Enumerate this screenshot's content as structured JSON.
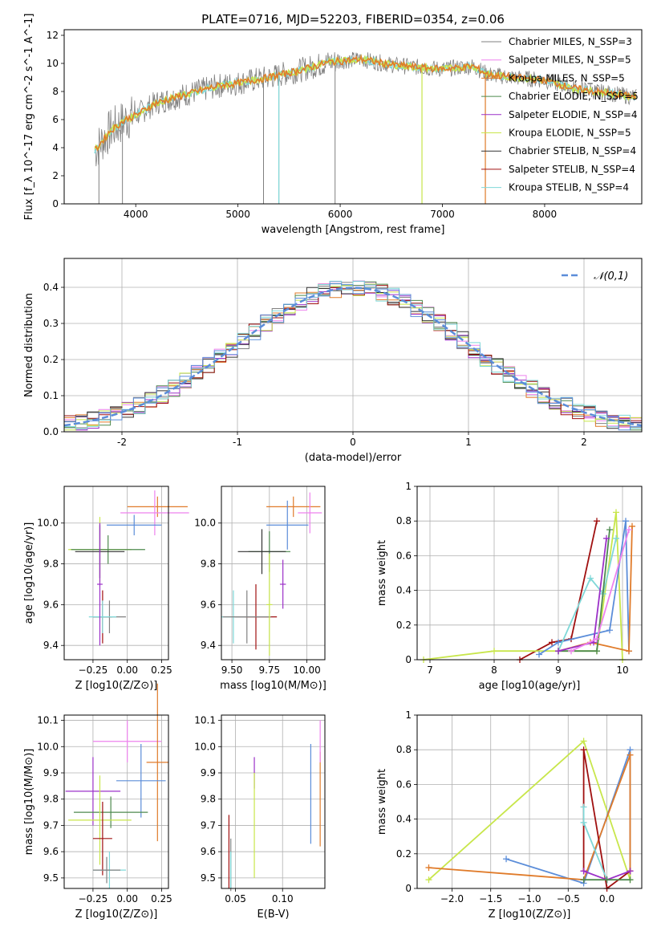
{
  "figure_title": "PLATE=0716, MJD=52203, FIBERID=0354, z=0.06",
  "colors": {
    "chabrier_miles": "#808080",
    "salpeter_miles": "#ee82ee",
    "kroupa_miles": "#e07b2a",
    "chabrier_elodie": "#4e8a4e",
    "salpeter_elodie": "#9b30c8",
    "kroupa_elodie": "#c8e64b",
    "chabrier_stelib": "#333333",
    "salpeter_stelib": "#a01010",
    "kroupa_stelib": "#7fd8d8",
    "normal_curve": "#5b8dd9"
  },
  "chart_data": [
    {
      "type": "line",
      "title": "PLATE=0716, MJD=52203, FIBERID=0354, z=0.06",
      "xlabel": "wavelength [Angstrom, rest frame]",
      "ylabel": "Flux [f_λ 10^-17 erg cm^-2 s^-1 A^-1]",
      "xlim": [
        3300,
        8950
      ],
      "ylim": [
        0,
        12.4
      ],
      "xticks": [
        4000,
        5000,
        6000,
        7000,
        8000
      ],
      "yticks": [
        0,
        2,
        4,
        6,
        8,
        10,
        12
      ],
      "grid": false,
      "legend_position": "right",
      "continuum": {
        "x": [
          3600,
          3750,
          3900,
          4000,
          4200,
          4500,
          4800,
          5000,
          5300,
          5600,
          5900,
          6200,
          6500,
          6800,
          7000,
          7300,
          7450,
          7700,
          8000,
          8300,
          8500,
          8700,
          8900
        ],
        "y": [
          3.8,
          5.2,
          6.0,
          6.3,
          7.2,
          7.8,
          8.4,
          8.6,
          9.0,
          9.5,
          10.1,
          10.3,
          9.9,
          9.7,
          9.6,
          9.8,
          9.2,
          9.0,
          8.8,
          8.2,
          8.0,
          7.8,
          7.6
        ]
      },
      "spikes": [
        {
          "x": 3640,
          "y": 0
        },
        {
          "x": 3870,
          "y": 0
        },
        {
          "x": 5250,
          "y": 0
        },
        {
          "x": 5400,
          "y": 0
        },
        {
          "x": 5950,
          "y": 0
        },
        {
          "x": 6800,
          "y": 0
        },
        {
          "x": 7420,
          "y": 0
        }
      ],
      "series": [
        {
          "name": "Chabrier MILES, N_SSP=3",
          "color_key": "chabrier_miles"
        },
        {
          "name": "Salpeter MILES, N_SSP=5",
          "color_key": "salpeter_miles"
        },
        {
          "name": "Kroupa MILES, N_SSP=5",
          "color_key": "kroupa_miles"
        },
        {
          "name": "Chabrier ELODIE, N_SSP=5",
          "color_key": "chabrier_elodie"
        },
        {
          "name": "Salpeter ELODIE, N_SSP=4",
          "color_key": "salpeter_elodie"
        },
        {
          "name": "Kroupa ELODIE, N_SSP=5",
          "color_key": "kroupa_elodie"
        },
        {
          "name": "Chabrier STELIB, N_SSP=4",
          "color_key": "chabrier_stelib"
        },
        {
          "name": "Salpeter STELIB, N_SSP=4",
          "color_key": "salpeter_stelib"
        },
        {
          "name": "Kroupa STELIB, N_SSP=4",
          "color_key": "kroupa_stelib"
        }
      ]
    },
    {
      "type": "histogram",
      "xlabel": "(data-model)/error",
      "ylabel": "Normed distribution",
      "xlim": [
        -2.5,
        2.5
      ],
      "ylim": [
        0,
        0.48
      ],
      "xticks": [
        -2,
        -1,
        0,
        1,
        2
      ],
      "yticks": [
        0.0,
        0.1,
        0.2,
        0.3,
        0.4
      ],
      "grid": true,
      "legend": "𝒩(0,1)",
      "legend_position": "top-right",
      "bin_width": 0.1
    },
    {
      "type": "errorbar",
      "xlabel": "Z [log10(Z/Z⊙)]",
      "ylabel": "age  [log10(age/yr)]",
      "xlim": [
        -0.46,
        0.3
      ],
      "ylim": [
        9.33,
        10.18
      ],
      "xticks": [
        -0.25,
        0.0,
        0.25
      ],
      "xticklabels": [
        "−0.25",
        "0.00",
        "0.25"
      ],
      "yticks": [
        9.4,
        9.6,
        9.8,
        10.0
      ],
      "yticklabels": [
        "9.4",
        "9.6",
        "9.8",
        "10.0"
      ],
      "grid": true,
      "points": [
        {
          "c": "kroupa_miles",
          "x": 0.22,
          "y": 10.08,
          "xerr": 0.22,
          "yerr": 0.05
        },
        {
          "c": "salpeter_miles",
          "x": 0.2,
          "y": 10.05,
          "xerr": 0.25,
          "yerr": 0.11
        },
        {
          "c": "normal_curve",
          "x": 0.05,
          "y": 9.99,
          "xerr": 0.2,
          "yerr": 0.05
        },
        {
          "c": "kroupa_elodie",
          "x": -0.2,
          "y": 9.87,
          "xerr": 0.23,
          "yerr": 0.16
        },
        {
          "c": "chabrier_elodie",
          "x": -0.14,
          "y": 9.87,
          "xerr": 0.27,
          "yerr": 0.07
        },
        {
          "c": "chabrier_stelib",
          "x": -0.2,
          "y": 9.86,
          "xerr": 0.18,
          "yerr": 0.13
        },
        {
          "c": "salpeter_stelib",
          "x": -0.18,
          "y": 9.54,
          "xerr": 0.07,
          "yerr": 0.13
        },
        {
          "c": "chabrier_miles",
          "x": -0.13,
          "y": 9.54,
          "xerr": 0.12,
          "yerr": 0.08
        },
        {
          "c": "kroupa_stelib",
          "x": -0.18,
          "y": 9.54,
          "xerr": 0.1,
          "yerr": 0.08
        },
        {
          "c": "salpeter_elodie",
          "x": -0.2,
          "y": 9.7,
          "xerr": 0.02,
          "yerr": 0.3
        }
      ]
    },
    {
      "type": "errorbar",
      "xlabel": "mass [log10(M/M⊙)]",
      "ylabel": "",
      "xlim": [
        9.43,
        10.12
      ],
      "ylim": [
        9.33,
        10.18
      ],
      "xticks": [
        9.5,
        9.75,
        10.0
      ],
      "xticklabels": [
        "9.50",
        "9.75",
        "10.00"
      ],
      "yticks": [
        9.4,
        9.6,
        9.8,
        10.0
      ],
      "yticklabels": [
        "9.4",
        "9.6",
        "9.8",
        "10.0"
      ],
      "grid": true,
      "points": [
        {
          "c": "kroupa_miles",
          "x": 9.91,
          "y": 10.08,
          "xerr": 0.18,
          "yerr": 0.05
        },
        {
          "c": "salpeter_miles",
          "x": 10.02,
          "y": 10.05,
          "xerr": 0.08,
          "yerr": 0.1
        },
        {
          "c": "normal_curve",
          "x": 9.87,
          "y": 9.99,
          "xerr": 0.14,
          "yerr": 0.12
        },
        {
          "c": "chabrier_elodie",
          "x": 9.75,
          "y": 9.86,
          "xerr": 0.14,
          "yerr": 0.1
        },
        {
          "c": "chabrier_stelib",
          "x": 9.7,
          "y": 9.86,
          "xerr": 0.16,
          "yerr": 0.11
        },
        {
          "c": "salpeter_stelib",
          "x": 9.66,
          "y": 9.54,
          "xerr": 0.14,
          "yerr": 0.16
        },
        {
          "c": "kroupa_stelib",
          "x": 9.51,
          "y": 9.54,
          "xerr": 0.08,
          "yerr": 0.13
        },
        {
          "c": "chabrier_miles",
          "x": 9.6,
          "y": 9.54,
          "xerr": 0.16,
          "yerr": 0.13
        },
        {
          "c": "salpeter_elodie",
          "x": 9.84,
          "y": 9.7,
          "xerr": 0.02,
          "yerr": 0.12
        },
        {
          "c": "kroupa_elodie",
          "x": 9.75,
          "y": 9.6,
          "xerr": 0.02,
          "yerr": 0.25
        }
      ]
    },
    {
      "type": "line",
      "xlabel": "age  [log10(age/yr)]",
      "ylabel": "mass weight",
      "xlim": [
        6.8,
        10.3
      ],
      "ylim": [
        0,
        1.0
      ],
      "xticks": [
        7,
        8,
        9,
        10
      ],
      "yticks": [
        0.0,
        0.2,
        0.4,
        0.6,
        0.8,
        1.0
      ],
      "grid": true,
      "series": [
        {
          "c": "salpeter_stelib",
          "x": [
            8.4,
            8.9,
            9.2,
            9.6
          ],
          "y": [
            0.0,
            0.1,
            0.12,
            0.8
          ]
        },
        {
          "c": "kroupa_elodie",
          "x": [
            6.9,
            8.0,
            9.6,
            9.9,
            10.0
          ],
          "y": [
            0.0,
            0.05,
            0.05,
            0.85,
            0.0
          ]
        },
        {
          "c": "normal_curve",
          "x": [
            8.7,
            9.0,
            9.8,
            10.05,
            10.1
          ],
          "y": [
            0.03,
            0.1,
            0.17,
            0.8,
            0.05
          ]
        },
        {
          "c": "kroupa_miles",
          "x": [
            9.0,
            9.5,
            10.1,
            10.15
          ],
          "y": [
            0.05,
            0.1,
            0.05,
            0.77
          ]
        },
        {
          "c": "kroupa_stelib",
          "x": [
            9.0,
            9.5,
            9.7,
            9.9
          ],
          "y": [
            0.05,
            0.47,
            0.38,
            0.7
          ]
        },
        {
          "c": "chabrier_elodie",
          "x": [
            9.0,
            9.6,
            9.8
          ],
          "y": [
            0.05,
            0.05,
            0.75
          ]
        },
        {
          "c": "salpeter_elodie",
          "x": [
            9.0,
            9.55,
            9.75
          ],
          "y": [
            0.05,
            0.1,
            0.7
          ]
        },
        {
          "c": "salpeter_miles",
          "x": [
            9.2,
            9.6,
            10.1
          ],
          "y": [
            0.05,
            0.12,
            0.75
          ]
        }
      ]
    },
    {
      "type": "errorbar",
      "xlabel": "Z [log10(Z/Z⊙)]",
      "ylabel": "mass [log10(M/M⊙)]",
      "xlim": [
        -0.46,
        0.3
      ],
      "ylim": [
        9.46,
        10.12
      ],
      "xticks": [
        -0.25,
        0.0,
        0.25
      ],
      "xticklabels": [
        "−0.25",
        "0.00",
        "0.25"
      ],
      "yticks": [
        9.5,
        9.6,
        9.7,
        9.8,
        9.9,
        10.0,
        10.1
      ],
      "yticklabels": [
        "9.5",
        "9.6",
        "9.7",
        "9.8",
        "9.9",
        "10.0",
        "10.1"
      ],
      "grid": true,
      "points": [
        {
          "c": "salpeter_miles",
          "x": 0.0,
          "y": 10.02,
          "xerr": 0.25,
          "yerr": 0.08
        },
        {
          "c": "kroupa_miles",
          "x": 0.22,
          "y": 9.94,
          "xerr": 0.08,
          "yerr": 0.3
        },
        {
          "c": "normal_curve",
          "x": 0.1,
          "y": 9.87,
          "xerr": 0.18,
          "yerr": 0.14
        },
        {
          "c": "salpeter_elodie",
          "x": -0.25,
          "y": 9.83,
          "xerr": 0.2,
          "yerr": 0.13
        },
        {
          "c": "chabrier_elodie",
          "x": -0.12,
          "y": 9.75,
          "xerr": 0.27,
          "yerr": 0.06
        },
        {
          "c": "kroupa_elodie",
          "x": -0.2,
          "y": 9.72,
          "xerr": 0.23,
          "yerr": 0.17
        },
        {
          "c": "salpeter_stelib",
          "x": -0.18,
          "y": 9.65,
          "xerr": 0.07,
          "yerr": 0.14
        },
        {
          "c": "kroupa_stelib",
          "x": -0.13,
          "y": 9.53,
          "xerr": 0.12,
          "yerr": 0.07
        },
        {
          "c": "chabrier_miles",
          "x": -0.15,
          "y": 9.53,
          "xerr": 0.1,
          "yerr": 0.05
        }
      ]
    },
    {
      "type": "errorbar",
      "xlabel": "E(B-V)",
      "ylabel": "",
      "xlim": [
        0.035,
        0.145
      ],
      "ylim": [
        9.46,
        10.12
      ],
      "xticks": [
        0.05,
        0.1
      ],
      "xticklabels": [
        "0.05",
        "0.10"
      ],
      "yticks": [
        9.5,
        9.6,
        9.7,
        9.8,
        9.9,
        10.0,
        10.1
      ],
      "yticklabels": [
        "9.5",
        "9.6",
        "9.7",
        "9.8",
        "9.9",
        "10.0",
        "10.1"
      ],
      "grid": true,
      "points": [
        {
          "c": "salpeter_stelib",
          "x": 0.043,
          "y": 9.6,
          "xerr": 0,
          "yerr": 0.14
        },
        {
          "c": "chabrier_miles",
          "x": 0.045,
          "y": 9.55,
          "xerr": 0,
          "yerr": 0.1
        },
        {
          "c": "kroupa_stelib",
          "x": 0.045,
          "y": 9.53,
          "xerr": 0,
          "yerr": 0.07
        },
        {
          "c": "salpeter_elodie",
          "x": 0.07,
          "y": 9.9,
          "xerr": 0,
          "yerr": 0.06
        },
        {
          "c": "kroupa_elodie",
          "x": 0.07,
          "y": 9.7,
          "xerr": 0,
          "yerr": 0.2
        },
        {
          "c": "normal_curve",
          "x": 0.13,
          "y": 9.82,
          "xerr": 0,
          "yerr": 0.19
        },
        {
          "c": "kroupa_miles",
          "x": 0.14,
          "y": 9.8,
          "xerr": 0,
          "yerr": 0.18
        },
        {
          "c": "salpeter_miles",
          "x": 0.14,
          "y": 10.02,
          "xerr": 0,
          "yerr": 0.08
        }
      ]
    },
    {
      "type": "line",
      "xlabel": "Z [log10(Z/Z⊙)]",
      "ylabel": "mass weight",
      "xlim": [
        -2.45,
        0.45
      ],
      "ylim": [
        0,
        1.0
      ],
      "xticks": [
        -2.0,
        -1.5,
        -1.0,
        -0.5,
        0.0
      ],
      "xticklabels": [
        "−2.0",
        "−1.5",
        "−1.0",
        "−0.5",
        "0.0"
      ],
      "yticks": [
        0.0,
        0.2,
        0.4,
        0.6,
        0.8,
        1.0
      ],
      "grid": true,
      "series": [
        {
          "c": "kroupa_elodie",
          "x": [
            -2.3,
            -0.3,
            0.3,
            0.3
          ],
          "y": [
            0.05,
            0.85,
            0.05,
            0.1
          ]
        },
        {
          "c": "normal_curve",
          "x": [
            -1.3,
            -0.3,
            0.3,
            0.3
          ],
          "y": [
            0.17,
            0.03,
            0.8,
            0.1
          ]
        },
        {
          "c": "kroupa_miles",
          "x": [
            -2.3,
            -0.3,
            0.3,
            0.3
          ],
          "y": [
            0.12,
            0.05,
            0.77,
            0.1
          ]
        },
        {
          "c": "salpeter_stelib",
          "x": [
            -0.3,
            -0.3,
            0.0,
            0.3
          ],
          "y": [
            0.1,
            0.8,
            0.0,
            0.1
          ]
        },
        {
          "c": "kroupa_stelib",
          "x": [
            -0.3,
            -0.3,
            0.0
          ],
          "y": [
            0.47,
            0.38,
            0.05
          ]
        },
        {
          "c": "salpeter_elodie",
          "x": [
            -0.3,
            0.0,
            0.3
          ],
          "y": [
            0.1,
            0.05,
            0.1
          ]
        },
        {
          "c": "chabrier_elodie",
          "x": [
            -0.3,
            0.0,
            0.3
          ],
          "y": [
            0.05,
            0.05,
            0.05
          ]
        }
      ]
    }
  ]
}
